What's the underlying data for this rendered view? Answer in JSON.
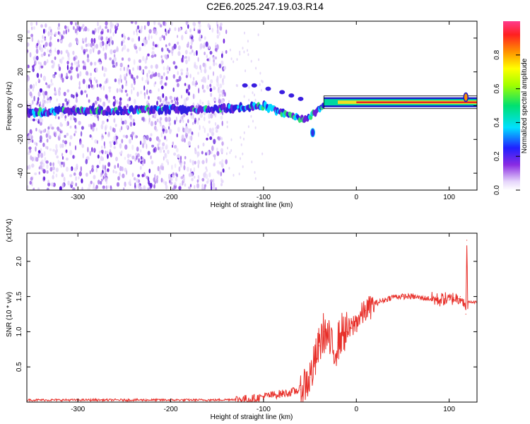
{
  "title": "C2E6.2025.247.19.03.R14",
  "colors": {
    "signal_line": "#e8302a",
    "frame": "#000000",
    "scatter_low": "#dcc6f4",
    "scatter_high": "#5a16d8"
  },
  "chart_data": [
    {
      "type": "heatmap",
      "xlabel": "Height of straight line (km)",
      "ylabel": "Frequency (Hz)",
      "xlim": [
        -355,
        130
      ],
      "ylim": [
        -50,
        50
      ],
      "xticks": [
        -300,
        -200,
        -100,
        0,
        100
      ],
      "yticks": [
        -40,
        -20,
        0,
        20,
        40
      ],
      "colorbar": {
        "label": "Normalized spectral amplitude",
        "range": [
          0.0,
          1.0
        ],
        "ticks": [
          0.0,
          0.2,
          0.4,
          0.6,
          0.8
        ]
      },
      "ridge": {
        "x": [
          -355,
          -300,
          -250,
          -200,
          -150,
          -120,
          -100,
          -85,
          -70,
          -55,
          -45,
          -35,
          -20,
          0,
          50,
          100,
          112,
          118,
          125,
          130
        ],
        "y": [
          -4,
          -3,
          -3,
          -2,
          -2,
          -1,
          0,
          -3,
          -6,
          -8,
          -4,
          1,
          2,
          2,
          2,
          2,
          2,
          5,
          2,
          2
        ]
      },
      "upper_branch": {
        "x": [
          -120,
          -110,
          -95,
          -80,
          -70,
          -60
        ],
        "y": [
          12,
          12,
          10,
          8,
          6,
          4
        ]
      },
      "side_blob": {
        "x": -47,
        "y": -16
      }
    },
    {
      "type": "line",
      "xlabel": "Height of straight line (km)",
      "ylabel": "SNR (10 * v/v)",
      "axis_multiplier": "(x10^4)",
      "xlim": [
        -355,
        130
      ],
      "ylim": [
        0,
        2.4
      ],
      "xticks": [
        -300,
        -200,
        -100,
        0,
        100
      ],
      "yticks": [
        0.5,
        1.0,
        1.5,
        2.0
      ],
      "series": [
        {
          "x": [
            -355,
            -300,
            -250,
            -200,
            -150,
            -130,
            -110,
            -100,
            -90,
            -80,
            -70,
            -60,
            -50,
            -45,
            -40,
            -35,
            -30,
            -25,
            -20,
            -15,
            -10,
            -5,
            0,
            10,
            20,
            30,
            40,
            50,
            60,
            70,
            80,
            90,
            95,
            100,
            105,
            110,
            112,
            115,
            118,
            119,
            120,
            121,
            122,
            125,
            130
          ],
          "y": [
            0.03,
            0.03,
            0.03,
            0.03,
            0.03,
            0.04,
            0.05,
            0.08,
            0.1,
            0.12,
            0.14,
            0.18,
            0.35,
            0.55,
            0.8,
            1.0,
            0.9,
            0.7,
            0.85,
            1.0,
            1.0,
            1.05,
            1.15,
            1.3,
            1.4,
            1.45,
            1.5,
            1.5,
            1.5,
            1.48,
            1.47,
            1.45,
            1.47,
            1.45,
            1.48,
            1.47,
            1.5,
            1.45,
            1.25,
            2.3,
            1.42,
            1.42,
            1.42,
            1.42,
            1.42
          ]
        }
      ]
    }
  ]
}
